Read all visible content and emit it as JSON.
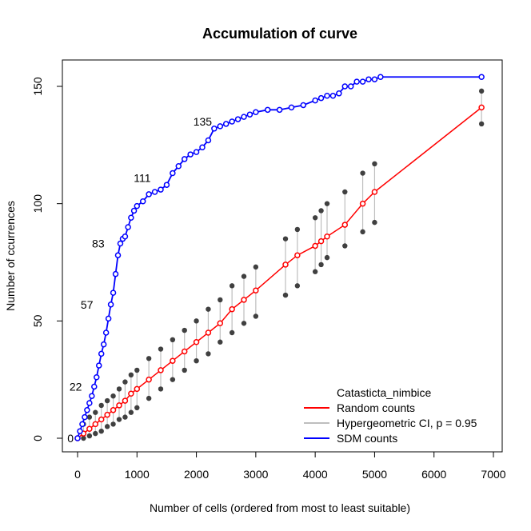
{
  "chart_data": {
    "type": "line",
    "title": "Accumulation of curve",
    "xlabel": "Number of cells (ordered from most to least suitable)",
    "ylabel": "Number of ccurrences",
    "xlim": [
      0,
      7000
    ],
    "ylim": [
      0,
      155
    ],
    "x_ticks": [
      0,
      1000,
      2000,
      3000,
      4000,
      5000,
      6000,
      7000
    ],
    "y_ticks": [
      0,
      50,
      100,
      150
    ],
    "grid": false,
    "legend": {
      "placement": "bottom-right",
      "title": "Catasticta_nimbice",
      "entries": [
        {
          "label": "Random counts",
          "color": "#ff0000"
        },
        {
          "label": "Hypergeometric CI, p = 0.95",
          "color": "#bebebe"
        },
        {
          "label": "SDM counts",
          "color": "#0000ff"
        }
      ]
    },
    "annotations": [
      {
        "text": "0",
        "x": 0,
        "y": 0
      },
      {
        "text": "22",
        "x": 140,
        "y": 22
      },
      {
        "text": "57",
        "x": 330,
        "y": 57
      },
      {
        "text": "83",
        "x": 520,
        "y": 83
      },
      {
        "text": "111",
        "x": 1300,
        "y": 111
      },
      {
        "text": "135",
        "x": 2330,
        "y": 135
      }
    ],
    "series": [
      {
        "name": "SDM counts",
        "color": "#0000ff",
        "x": [
          0,
          40,
          80,
          120,
          160,
          200,
          240,
          280,
          320,
          360,
          400,
          440,
          480,
          520,
          560,
          600,
          640,
          680,
          720,
          760,
          800,
          850,
          900,
          950,
          1000,
          1100,
          1200,
          1300,
          1400,
          1500,
          1600,
          1700,
          1800,
          1900,
          2000,
          2100,
          2200,
          2300,
          2400,
          2500,
          2600,
          2700,
          2800,
          2900,
          3000,
          3200,
          3400,
          3600,
          3800,
          4000,
          4100,
          4200,
          4300,
          4400,
          4500,
          4600,
          4700,
          4800,
          4900,
          5000,
          5100,
          6800
        ],
        "y": [
          0,
          3,
          6,
          9,
          12,
          15,
          18,
          22,
          26,
          31,
          36,
          40,
          45,
          51,
          57,
          62,
          70,
          78,
          83,
          85,
          86,
          90,
          94,
          97,
          99,
          101,
          104,
          105,
          106,
          108,
          113,
          116,
          119,
          121,
          122,
          124,
          127,
          132,
          133,
          134,
          135,
          136,
          137,
          138,
          139,
          140,
          140,
          141,
          142,
          144,
          145,
          146,
          146,
          147,
          150,
          150,
          152,
          152,
          153,
          153,
          154,
          154
        ]
      },
      {
        "name": "Random counts",
        "color": "#ff0000",
        "x": [
          0,
          100,
          200,
          300,
          400,
          500,
          600,
          700,
          800,
          900,
          1000,
          1200,
          1400,
          1600,
          1800,
          2000,
          2200,
          2400,
          2600,
          2800,
          3000,
          3500,
          3700,
          4000,
          4100,
          4200,
          4500,
          4800,
          5000,
          6800
        ],
        "y": [
          0,
          2,
          4,
          6,
          8,
          10,
          12,
          14,
          16,
          19,
          21,
          25,
          29,
          33,
          37,
          41,
          45,
          49,
          55,
          59,
          63,
          74,
          78,
          82,
          84,
          86,
          91,
          100,
          105,
          141
        ],
        "ci_lower": [
          0,
          0,
          1,
          2,
          3,
          5,
          6,
          8,
          9,
          11,
          13,
          17,
          21,
          25,
          29,
          33,
          36,
          41,
          45,
          49,
          52,
          61,
          65,
          71,
          74,
          77,
          82,
          88,
          92,
          134
        ],
        "ci_upper": [
          0,
          6,
          9,
          11,
          14,
          16,
          18,
          21,
          24,
          27,
          29,
          34,
          38,
          42,
          46,
          50,
          55,
          59,
          65,
          69,
          73,
          85,
          89,
          94,
          97,
          100,
          105,
          113,
          117,
          148
        ]
      }
    ]
  }
}
